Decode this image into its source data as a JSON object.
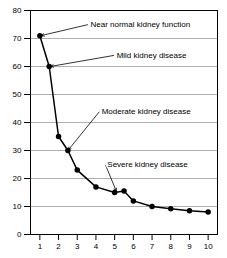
{
  "chart_data": {
    "type": "line",
    "x": [
      1,
      1.5,
      2,
      2.5,
      3,
      4,
      5,
      5.5,
      6,
      7,
      8,
      9,
      10
    ],
    "values": [
      71,
      60,
      35,
      30,
      23,
      17,
      15,
      15.5,
      12,
      10,
      9.2,
      8.5,
      8
    ],
    "color": "#000000",
    "marker": "circle",
    "xlim": [
      0.5,
      10.5
    ],
    "ylim": [
      0,
      80
    ],
    "xticks": [
      1,
      2,
      3,
      4,
      5,
      6,
      7,
      8,
      9,
      10
    ],
    "yticks": [
      0,
      10,
      20,
      30,
      40,
      50,
      60,
      70,
      80
    ],
    "grid": "y",
    "annotations": [
      {
        "text": "Near normal kidney function",
        "xy": [
          1.05,
          71
        ],
        "xytext": [
          3.6,
          75
        ]
      },
      {
        "text": "Mild kidney disease",
        "xy": [
          1.55,
          60
        ],
        "xytext": [
          5.0,
          64
        ]
      },
      {
        "text": "Moderate kidney disease",
        "xy": [
          2.5,
          30
        ],
        "xytext": [
          4.2,
          44
        ]
      },
      {
        "text": "Severe kidney disease",
        "xy": [
          5.1,
          15.3
        ],
        "xytext": [
          4.5,
          25
        ]
      }
    ]
  }
}
